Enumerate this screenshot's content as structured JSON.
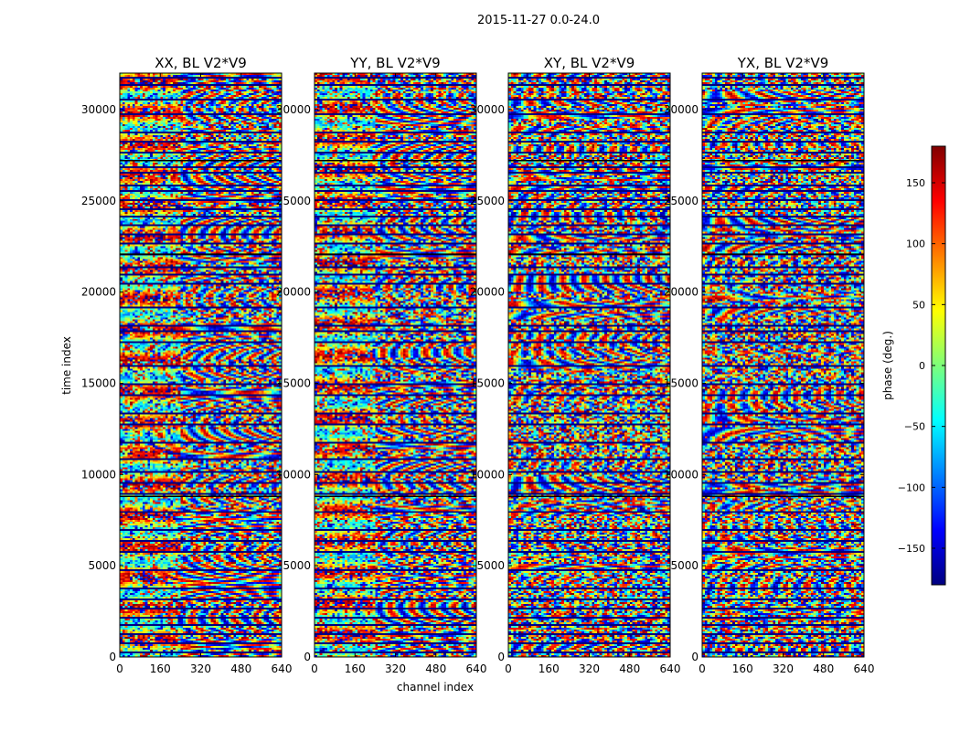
{
  "chart_data": {
    "type": "heatmap",
    "suptitle": "2015-11-27 0.0-24.0",
    "xlabel": "channel index",
    "ylabel": "time index",
    "xlim": [
      0,
      640
    ],
    "ylim": [
      0,
      32000
    ],
    "xticks": [
      0,
      160,
      320,
      480,
      640
    ],
    "yticks": [
      0,
      5000,
      10000,
      15000,
      20000,
      25000,
      30000
    ],
    "panels": [
      {
        "title": "XX, BL V2*V9",
        "pol": "XX"
      },
      {
        "title": "YY, BL V2*V9",
        "pol": "YY"
      },
      {
        "title": "XY, BL V2*V9",
        "pol": "XY"
      },
      {
        "title": "YX, BL V2*V9",
        "pol": "YX"
      }
    ],
    "colorbar": {
      "label": "phase (deg.)",
      "range": [
        -180,
        180
      ],
      "ticks": [
        -150,
        -100,
        -50,
        0,
        50,
        100,
        150
      ],
      "colormap": "jet"
    }
  }
}
